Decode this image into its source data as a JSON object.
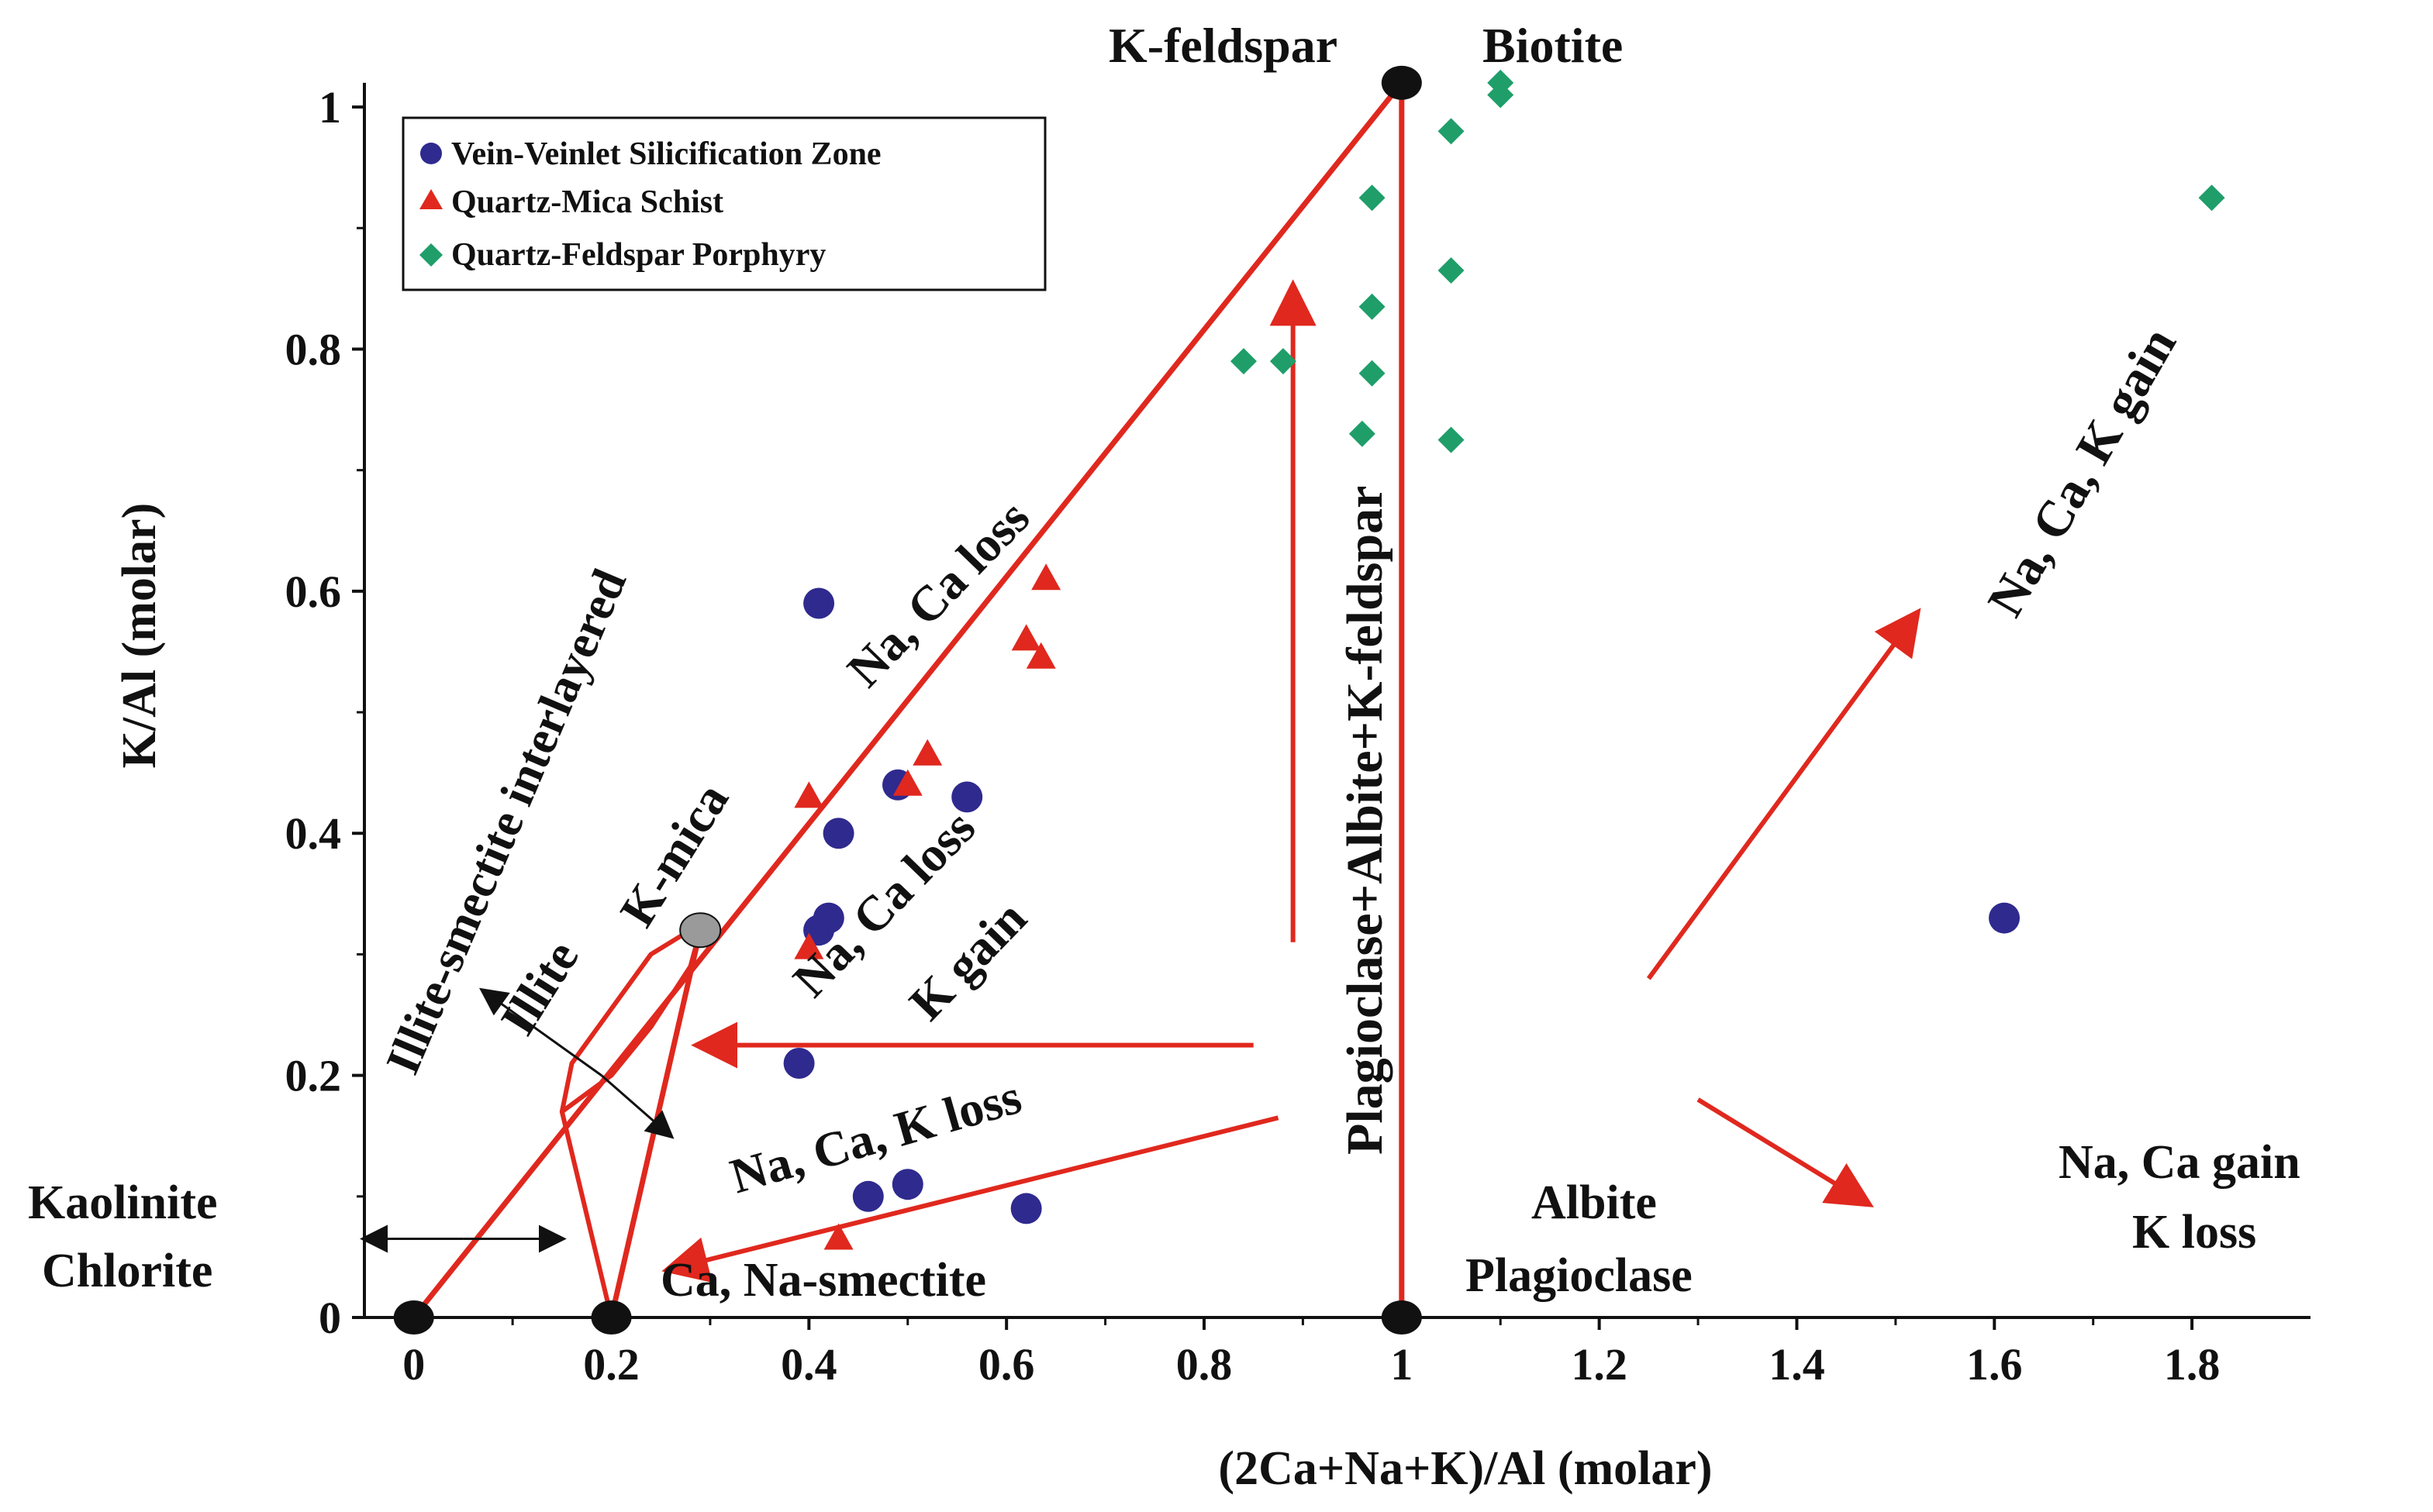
{
  "colors": {
    "axis": "#111111",
    "boundary": "#e0281e",
    "vein": "#2f2a8e",
    "schist": "#e0281e",
    "porphyry": "#1f9e6a",
    "mineral_node": "#111111",
    "kmica_node": "#9a9a9a"
  },
  "chart_data": {
    "type": "scatter",
    "title": "",
    "xlabel": "(2Ca+Na+K)/Al (molar)",
    "ylabel": "K/Al (molar)",
    "xlim": [
      -0.05,
      1.92
    ],
    "ylim": [
      0,
      1.05
    ],
    "x_ticks": [
      0,
      0.2,
      0.4,
      0.6,
      0.8,
      1,
      1.2,
      1.4,
      1.6,
      1.8
    ],
    "x_tick_labels": [
      "0",
      "0.2",
      "0.4",
      "0.6",
      "0.8",
      "1",
      "1.2",
      "1.4",
      "1.6",
      "1.8"
    ],
    "y_ticks": [
      0,
      0.2,
      0.4,
      0.6,
      0.8,
      1
    ],
    "y_tick_labels": [
      "0",
      "0.2",
      "0.4",
      "0.6",
      "0.8",
      "1"
    ],
    "legend_position": "top-left",
    "series": [
      {
        "name": "Vein-Veinlet Silicification Zone",
        "marker": "circle",
        "color": "#2f2a8e",
        "points": [
          [
            0.41,
            0.59
          ],
          [
            0.43,
            0.4
          ],
          [
            0.49,
            0.44
          ],
          [
            0.56,
            0.43
          ],
          [
            0.41,
            0.32
          ],
          [
            0.42,
            0.33
          ],
          [
            0.39,
            0.21
          ],
          [
            0.46,
            0.1
          ],
          [
            0.5,
            0.11
          ],
          [
            0.62,
            0.09
          ],
          [
            1.61,
            0.33
          ]
        ]
      },
      {
        "name": "Quartz-Mica Schist",
        "marker": "triangle",
        "color": "#e0281e",
        "points": [
          [
            0.64,
            0.61
          ],
          [
            0.62,
            0.56
          ],
          [
            0.635,
            0.545
          ],
          [
            0.52,
            0.465
          ],
          [
            0.5,
            0.44
          ],
          [
            0.4,
            0.43
          ],
          [
            0.4,
            0.305
          ],
          [
            0.43,
            0.065
          ]
        ]
      },
      {
        "name": "Quartz-Feldspar Porphyry",
        "marker": "diamond",
        "color": "#1f9e6a",
        "points": [
          [
            1.1,
            1.02
          ],
          [
            1.1,
            1.01
          ],
          [
            1.05,
            0.98
          ],
          [
            0.97,
            0.925
          ],
          [
            1.05,
            0.865
          ],
          [
            0.97,
            0.835
          ],
          [
            0.84,
            0.79
          ],
          [
            0.88,
            0.79
          ],
          [
            0.97,
            0.78
          ],
          [
            0.96,
            0.73
          ],
          [
            1.05,
            0.725
          ],
          [
            1.82,
            0.925
          ]
        ]
      }
    ],
    "mineral_nodes": [
      {
        "name": "K-feldspar / Biotite",
        "x": 1.0,
        "y": 1.02
      },
      {
        "name": "Albite / Plagioclase",
        "x": 1.0,
        "y": 0.0
      },
      {
        "name": "Kaolinite / Chlorite",
        "x": 0.0,
        "y": 0.0
      },
      {
        "name": "Ca, Na-smectite",
        "x": 0.2,
        "y": 0.0
      },
      {
        "name": "K-mica",
        "x": 0.29,
        "y": 0.32
      }
    ],
    "labels": {
      "k_feldspar": "K-feldspar",
      "biotite": "Biotite",
      "albite": "Albite",
      "plagioclase": "Plagioclase",
      "kaolinite": "Kaolinite",
      "chlorite": "Chlorite",
      "smectite": "Ca, Na-smectite",
      "k_mica": "K-mica",
      "illite": "Illite",
      "illite_smectite": "Illite-smectite interlayered",
      "na_ca_loss": "Na, Ca loss",
      "na_ca_loss_k_gain_1": "Na, Ca loss",
      "na_ca_loss_k_gain_2": "K gain",
      "na_ca_k_loss": "Na, Ca, K loss",
      "feldspar_trend": "Plagioclase+Albite+K-feldspar",
      "na_ca_k_gain": "Na, Ca, K gain",
      "na_ca_gain_k_loss_1": "Na, Ca gain",
      "na_ca_gain_k_loss_2": "K loss"
    }
  }
}
